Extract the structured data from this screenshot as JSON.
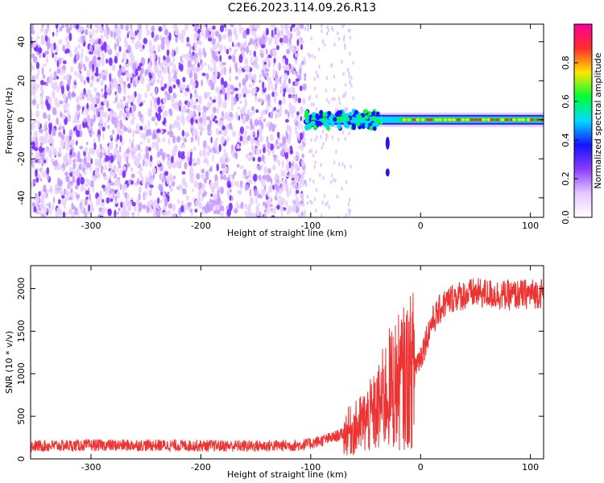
{
  "title": "C2E6.2023.114.09.26.R13",
  "chart_data": [
    {
      "type": "heatmap",
      "name": "spectrogram",
      "xlabel": "Height of straight line (km)",
      "ylabel": "Frequency (Hz)",
      "xlim": [
        -355,
        112
      ],
      "ylim": [
        -50,
        49
      ],
      "xticks": [
        -300,
        -200,
        -100,
        0,
        100
      ],
      "yticks": [
        -40,
        -20,
        0,
        20,
        40
      ],
      "colorbar": {
        "label": "Normalized spectral amplitude",
        "range": [
          0.0,
          1.0
        ],
        "ticks": [
          0.0,
          0.2,
          0.4,
          0.6,
          0.8
        ],
        "colors": [
          "#ffffff",
          "#e6c8ff",
          "#8a3cff",
          "#1414ff",
          "#00dcff",
          "#00ff32",
          "#ffe600",
          "#ff2d2d",
          "#ff0096"
        ]
      },
      "description_regions": {
        "noise_x_range": [
          -355,
          -105
        ],
        "signal_x_range": [
          -105,
          112
        ],
        "signal_frequency_hz": 0
      }
    },
    {
      "type": "line",
      "name": "snr",
      "xlabel": "Height of straight line (km)",
      "ylabel": "SNR (10 * v/v)",
      "xlim": [
        -355,
        112
      ],
      "ylim": [
        0,
        2270
      ],
      "xticks": [
        -300,
        -200,
        -100,
        0,
        100
      ],
      "yticks": [
        0,
        500,
        1000,
        1500,
        2000
      ],
      "color": "#ee3333",
      "series": [
        {
          "x": [
            -355,
            -300,
            -250,
            -200,
            -150,
            -110,
            -100,
            -80,
            -60,
            -40,
            -30,
            -20,
            -10,
            0,
            10,
            20,
            30,
            50,
            80,
            112
          ],
          "values": [
            150,
            160,
            160,
            155,
            150,
            160,
            180,
            250,
            350,
            550,
            800,
            900,
            1000,
            1200,
            1600,
            1800,
            1900,
            1950,
            1920,
            1950
          ]
        }
      ]
    }
  ]
}
